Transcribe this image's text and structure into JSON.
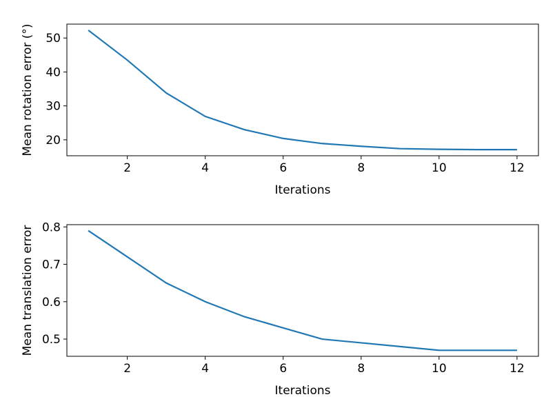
{
  "chart_data": [
    {
      "type": "line",
      "x": [
        1,
        2,
        3,
        4,
        5,
        6,
        7,
        8,
        9,
        10,
        11,
        12
      ],
      "values": [
        52.3,
        43.5,
        33.8,
        26.9,
        23.0,
        20.4,
        18.9,
        18.1,
        17.4,
        17.2,
        17.1,
        17.1
      ],
      "color": "#1f77b4",
      "xlabel": "Iterations",
      "ylabel": "Mean rotation error (°)",
      "xlim": [
        0.45,
        12.55
      ],
      "xticks": [
        2,
        4,
        6,
        8,
        10,
        12
      ],
      "ylim": [
        15.3,
        54.1
      ],
      "yticks": [
        20,
        30,
        40,
        50
      ]
    },
    {
      "type": "line",
      "x": [
        1,
        2,
        3,
        4,
        5,
        6,
        7,
        8,
        9,
        10,
        11,
        12
      ],
      "values": [
        0.79,
        0.72,
        0.65,
        0.6,
        0.56,
        0.53,
        0.5,
        0.49,
        0.48,
        0.47,
        0.47,
        0.47
      ],
      "color": "#1f77b4",
      "xlabel": "Iterations",
      "ylabel": "Mean translation error",
      "xlim": [
        0.45,
        12.55
      ],
      "xticks": [
        2,
        4,
        6,
        8,
        10,
        12
      ],
      "ylim": [
        0.454,
        0.806
      ],
      "yticks": [
        0.5,
        0.6,
        0.7,
        0.8
      ]
    }
  ]
}
